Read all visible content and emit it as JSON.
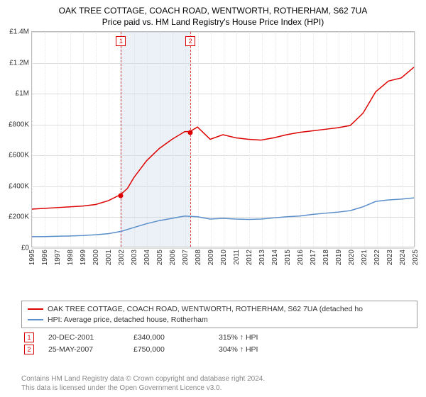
{
  "title": "OAK TREE COTTAGE, COACH ROAD, WENTWORTH, ROTHERHAM, S62 7UA",
  "subtitle": "Price paid vs. HM Land Registry's House Price Index (HPI)",
  "chart": {
    "type": "line",
    "background_color": "#ffffff",
    "grid_color": "#dddddd",
    "border_color": "#bbbbbb",
    "xlim": [
      1995,
      2025
    ],
    "ylim": [
      0,
      1400000
    ],
    "yticks": [
      {
        "v": 0,
        "label": "£0"
      },
      {
        "v": 200000,
        "label": "£200K"
      },
      {
        "v": 400000,
        "label": "£400K"
      },
      {
        "v": 600000,
        "label": "£600K"
      },
      {
        "v": 800000,
        "label": "£800K"
      },
      {
        "v": 1000000,
        "label": "£1M"
      },
      {
        "v": 1200000,
        "label": "£1.2M"
      },
      {
        "v": 1400000,
        "label": "£1.4M"
      }
    ],
    "xticks": [
      1995,
      1996,
      1997,
      1998,
      1999,
      2000,
      2001,
      2002,
      2003,
      2004,
      2005,
      2006,
      2007,
      2008,
      2009,
      2010,
      2011,
      2012,
      2013,
      2014,
      2015,
      2016,
      2017,
      2018,
      2019,
      2020,
      2021,
      2022,
      2023,
      2024,
      2025
    ],
    "shaded_ranges": [
      {
        "x0": 2001.9,
        "x1": 2007.4,
        "color": "rgba(200,215,235,0.35)"
      }
    ],
    "vlines": [
      {
        "x": 2001.97,
        "color": "#dd4444"
      },
      {
        "x": 2007.4,
        "color": "#dd4444"
      }
    ],
    "series": [
      {
        "name": "OAK TREE COTTAGE, COACH ROAD, WENTWORTH, ROTHERHAM, S62 7UA (detached ho",
        "color": "#dd0000",
        "line_width": 1.5,
        "points": [
          [
            1995,
            245000
          ],
          [
            1996,
            250000
          ],
          [
            1997,
            255000
          ],
          [
            1998,
            260000
          ],
          [
            1999,
            265000
          ],
          [
            2000,
            275000
          ],
          [
            2001,
            300000
          ],
          [
            2001.97,
            340000
          ],
          [
            2002.5,
            380000
          ],
          [
            2003,
            450000
          ],
          [
            2004,
            560000
          ],
          [
            2005,
            640000
          ],
          [
            2006,
            700000
          ],
          [
            2007,
            750000
          ],
          [
            2007.4,
            750000
          ],
          [
            2008,
            780000
          ],
          [
            2008.5,
            740000
          ],
          [
            2009,
            700000
          ],
          [
            2010,
            730000
          ],
          [
            2011,
            710000
          ],
          [
            2012,
            700000
          ],
          [
            2013,
            695000
          ],
          [
            2014,
            710000
          ],
          [
            2015,
            730000
          ],
          [
            2016,
            745000
          ],
          [
            2017,
            755000
          ],
          [
            2018,
            765000
          ],
          [
            2019,
            775000
          ],
          [
            2020,
            790000
          ],
          [
            2021,
            870000
          ],
          [
            2022,
            1010000
          ],
          [
            2023,
            1080000
          ],
          [
            2024,
            1100000
          ],
          [
            2025,
            1170000
          ]
        ]
      },
      {
        "name": "HPI: Average price, detached house, Rotherham",
        "color": "#5a8ecb",
        "line_width": 1.5,
        "points": [
          [
            1995,
            65000
          ],
          [
            1996,
            66000
          ],
          [
            1997,
            68000
          ],
          [
            1998,
            70000
          ],
          [
            1999,
            73000
          ],
          [
            2000,
            78000
          ],
          [
            2001,
            85000
          ],
          [
            2002,
            100000
          ],
          [
            2003,
            125000
          ],
          [
            2004,
            150000
          ],
          [
            2005,
            170000
          ],
          [
            2006,
            185000
          ],
          [
            2007,
            200000
          ],
          [
            2008,
            195000
          ],
          [
            2009,
            180000
          ],
          [
            2010,
            185000
          ],
          [
            2011,
            180000
          ],
          [
            2012,
            178000
          ],
          [
            2013,
            180000
          ],
          [
            2014,
            188000
          ],
          [
            2015,
            195000
          ],
          [
            2016,
            200000
          ],
          [
            2017,
            210000
          ],
          [
            2018,
            218000
          ],
          [
            2019,
            225000
          ],
          [
            2020,
            235000
          ],
          [
            2021,
            260000
          ],
          [
            2022,
            295000
          ],
          [
            2023,
            305000
          ],
          [
            2024,
            310000
          ],
          [
            2025,
            318000
          ]
        ]
      }
    ],
    "label_markers": [
      {
        "n": "1",
        "x": 2001.97,
        "y_label_top": true
      },
      {
        "n": "2",
        "x": 2007.4,
        "y_label_top": true
      }
    ],
    "sale_points": [
      {
        "n": "1",
        "x": 2001.97,
        "y": 340000,
        "color": "#dd0000"
      },
      {
        "n": "2",
        "x": 2007.4,
        "y": 750000,
        "color": "#dd0000"
      }
    ]
  },
  "sales_table": [
    {
      "n": "1",
      "date": "20-DEC-2001",
      "price": "£340,000",
      "delta": "315% ↑ HPI"
    },
    {
      "n": "2",
      "date": "25-MAY-2007",
      "price": "£750,000",
      "delta": "304% ↑ HPI"
    }
  ],
  "attribution": {
    "line1": "Contains HM Land Registry data © Crown copyright and database right 2024.",
    "line2": "This data is licensed under the Open Government Licence v3.0."
  }
}
